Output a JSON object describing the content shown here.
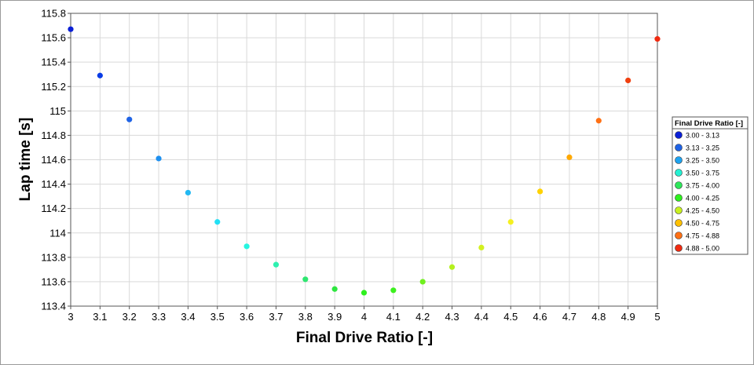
{
  "chart_data": {
    "type": "scatter",
    "title": "",
    "xlabel": "Final Drive Ratio [-]",
    "ylabel": "Lap time [s]",
    "xlim": [
      3,
      5
    ],
    "ylim": [
      113.4,
      115.8
    ],
    "xticks": [
      3,
      3.1,
      3.2,
      3.3,
      3.4,
      3.5,
      3.6,
      3.7,
      3.8,
      3.9,
      4,
      4.1,
      4.2,
      4.3,
      4.4,
      4.5,
      4.6,
      4.7,
      4.8,
      4.9,
      5
    ],
    "xtick_labels": [
      "3",
      "3.1",
      "3.2",
      "3.3",
      "3.4",
      "3.5",
      "3.6",
      "3.7",
      "3.8",
      "3.9",
      "4",
      "4.1",
      "4.2",
      "4.3",
      "4.4",
      "4.5",
      "4.6",
      "4.7",
      "4.8",
      "4.9",
      "5"
    ],
    "yticks": [
      113.4,
      113.6,
      113.8,
      114,
      114.2,
      114.4,
      114.6,
      114.8,
      115,
      115.2,
      115.4,
      115.6,
      115.8
    ],
    "ytick_labels": [
      "113.4",
      "113.6",
      "113.8",
      "114",
      "114.2",
      "114.4",
      "114.6",
      "114.8",
      "115",
      "115.2",
      "115.4",
      "115.6",
      "115.8"
    ],
    "grid": true,
    "legend_placement": "right",
    "legend_title": "Final Drive Ratio [-]",
    "legend": [
      {
        "label": "3.00 - 3.13",
        "color": "#0a1fd6"
      },
      {
        "label": "3.13 - 3.25",
        "color": "#1f63e6"
      },
      {
        "label": "3.25 - 3.50",
        "color": "#1ea3f0"
      },
      {
        "label": "3.50 - 3.75",
        "color": "#24f0d2"
      },
      {
        "label": "3.75 - 4.00",
        "color": "#2ee65a"
      },
      {
        "label": "4.00 - 4.25",
        "color": "#2ef01e"
      },
      {
        "label": "4.25 - 4.50",
        "color": "#c8f020"
      },
      {
        "label": "4.50 - 4.75",
        "color": "#ffc000"
      },
      {
        "label": "4.75 - 4.88",
        "color": "#ff7014"
      },
      {
        "label": "4.88 - 5.00",
        "color": "#f02a10"
      }
    ],
    "points": [
      {
        "x": 3.0,
        "y": 115.67,
        "color": "#0a1fd6"
      },
      {
        "x": 3.1,
        "y": 115.29,
        "color": "#0a3ce6"
      },
      {
        "x": 3.2,
        "y": 114.93,
        "color": "#1f63e6"
      },
      {
        "x": 3.3,
        "y": 114.61,
        "color": "#1e90f0"
      },
      {
        "x": 3.4,
        "y": 114.33,
        "color": "#22b8f2"
      },
      {
        "x": 3.5,
        "y": 114.09,
        "color": "#22e0f5"
      },
      {
        "x": 3.6,
        "y": 113.89,
        "color": "#26f5e0"
      },
      {
        "x": 3.7,
        "y": 113.74,
        "color": "#2ef0b0"
      },
      {
        "x": 3.8,
        "y": 113.62,
        "color": "#2ee670"
      },
      {
        "x": 3.9,
        "y": 113.54,
        "color": "#2ee640"
      },
      {
        "x": 4.0,
        "y": 113.51,
        "color": "#2ef01e"
      },
      {
        "x": 4.1,
        "y": 113.53,
        "color": "#3cf01e"
      },
      {
        "x": 4.2,
        "y": 113.6,
        "color": "#70f01e"
      },
      {
        "x": 4.3,
        "y": 113.72,
        "color": "#b4f01e"
      },
      {
        "x": 4.4,
        "y": 113.88,
        "color": "#d2f020"
      },
      {
        "x": 4.5,
        "y": 114.09,
        "color": "#f5f020"
      },
      {
        "x": 4.6,
        "y": 114.34,
        "color": "#ffd200"
      },
      {
        "x": 4.7,
        "y": 114.62,
        "color": "#ffa800"
      },
      {
        "x": 4.8,
        "y": 114.92,
        "color": "#ff7014"
      },
      {
        "x": 4.9,
        "y": 115.25,
        "color": "#f04010"
      },
      {
        "x": 5.0,
        "y": 115.59,
        "color": "#f02a10"
      }
    ]
  }
}
